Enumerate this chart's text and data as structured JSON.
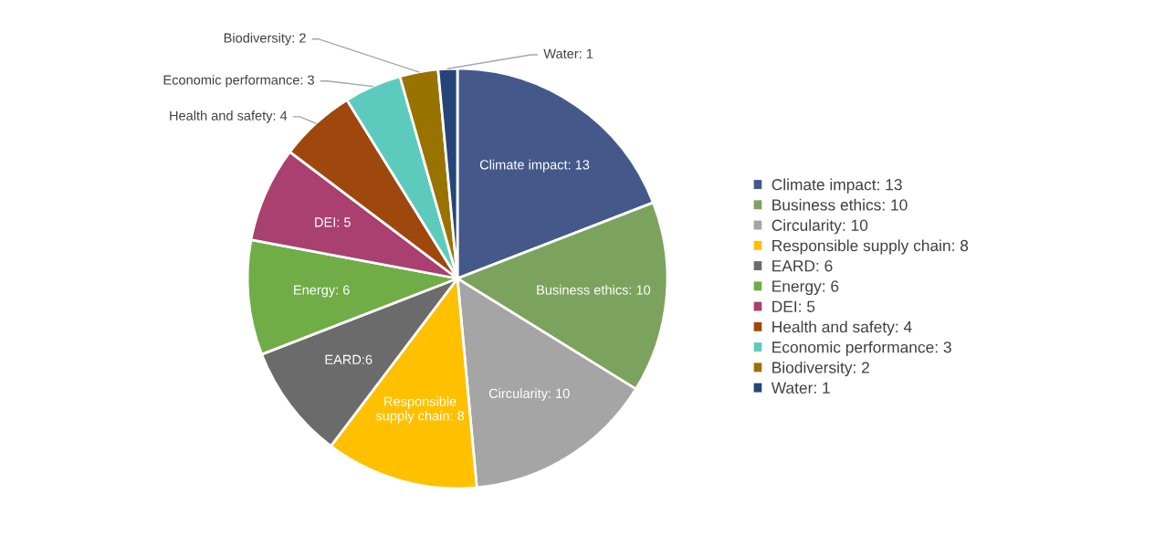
{
  "chart_data": {
    "type": "pie",
    "categories": [
      "Climate impact: 13",
      "Business ethics: 10",
      "Circularity: 10",
      "Responsible supply chain: 8",
      "EARD: 6",
      "Energy: 6",
      "DEI: 5",
      "Health and safety: 4",
      "Economic performance: 3",
      "Biodiversity: 2",
      "Water: 1"
    ],
    "values": [
      13,
      10,
      10,
      8,
      6,
      6,
      5,
      4,
      3,
      2,
      1
    ],
    "value_labels": [
      "Climate impact: 13",
      "Business ethics: 10",
      "Circularity: 10",
      "Responsible\nsupply chain: 8",
      "EARD:6",
      "Energy: 6",
      "DEI: 5",
      "Health and safety: 4",
      "Economic performance: 3",
      "Biodiversity: 2",
      "Water: 1"
    ],
    "colors": [
      "#44598a",
      "#7ca35d",
      "#a5a5a5",
      "#ffc000",
      "#6b6b6b",
      "#70ad47",
      "#a94070",
      "#9e480e",
      "#5ccbbd",
      "#997300",
      "#264478"
    ],
    "legend": "right"
  }
}
